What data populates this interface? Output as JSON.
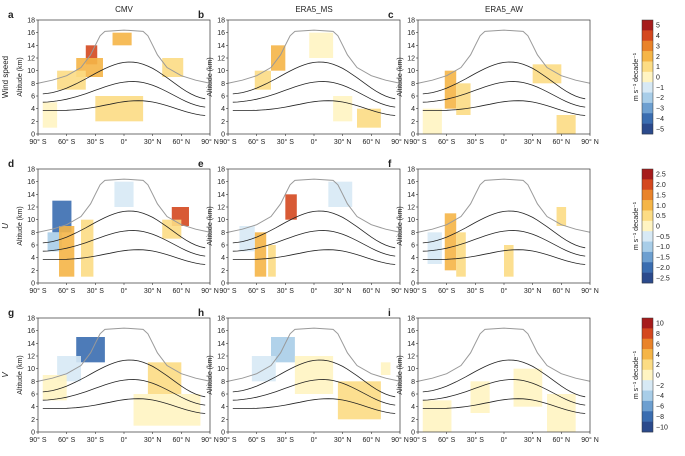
{
  "columns": [
    "CMV",
    "ERA5_MS",
    "ERA5_AW"
  ],
  "rows": [
    {
      "label": "Wind speed",
      "italic": false,
      "panels": [
        "a",
        "b",
        "c"
      ]
    },
    {
      "label": "U",
      "italic": true,
      "panels": [
        "d",
        "e",
        "f"
      ]
    },
    {
      "label": "V",
      "italic": true,
      "panels": [
        "g",
        "h",
        "i"
      ]
    }
  ],
  "axis": {
    "ylabel": "Altitude (km)",
    "yticks": [
      "0",
      "2",
      "4",
      "6",
      "8",
      "10",
      "12",
      "14",
      "16",
      "18"
    ],
    "xticks": [
      "90° S",
      "60° S",
      "30° S",
      "0°",
      "30° N",
      "60° N",
      "90° N"
    ]
  },
  "colorbars": [
    {
      "ticks": [
        "5",
        "4",
        "3",
        "2",
        "1",
        "0",
        "−1",
        "−2",
        "−3",
        "−4",
        "−5"
      ],
      "label": "m s⁻¹ decade⁻¹"
    },
    {
      "ticks": [
        "2.5",
        "2.0",
        "1.5",
        "1.0",
        "0.5",
        "0",
        "−0.5",
        "−1.0",
        "−1.5",
        "−2.0",
        "−2.5"
      ],
      "label": "m s⁻¹ decade⁻¹"
    },
    {
      "ticks": [
        "10",
        "8",
        "6",
        "4",
        "2",
        "0",
        "−2",
        "−4",
        "−6",
        "−8",
        "−10"
      ],
      "label": "m s⁻¹ decade⁻¹"
    }
  ],
  "colors": [
    "#2b4a8c",
    "#3a6db0",
    "#6d9fd0",
    "#a8cde8",
    "#d7e9f5",
    "#fff4c2",
    "#fcdc84",
    "#f5b547",
    "#e9832a",
    "#d4481f",
    "#a61c1c"
  ],
  "chart_data": {
    "type": "heatmap",
    "title": "",
    "xlabel": "",
    "ylabel": "Altitude (km)",
    "xlim": [
      -90,
      90
    ],
    "ylim": [
      0,
      18
    ],
    "tropopause_km": [
      [
        -90,
        8.0
      ],
      [
        -75,
        8.5
      ],
      [
        -60,
        9.2
      ],
      [
        -45,
        10.5
      ],
      [
        -35,
        12.5
      ],
      [
        -30,
        14.0
      ],
      [
        -25,
        15.5
      ],
      [
        -20,
        16.2
      ],
      [
        0,
        16.4
      ],
      [
        20,
        16.2
      ],
      [
        25,
        15.5
      ],
      [
        30,
        14.0
      ],
      [
        35,
        12.5
      ],
      [
        45,
        10.5
      ],
      [
        60,
        9.2
      ],
      [
        75,
        8.5
      ],
      [
        90,
        8.0
      ]
    ],
    "panels": [
      {
        "id": "a",
        "quantity": "Wind speed",
        "dataset": "CMV",
        "colorbar": 0,
        "patches": [
          {
            "lat": [
              -40,
              -28
            ],
            "alt": [
              11,
              14
            ],
            "value": 3.5
          },
          {
            "lat": [
              -50,
              -22
            ],
            "alt": [
              9,
              12
            ],
            "value": 1.5
          },
          {
            "lat": [
              -70,
              -40
            ],
            "alt": [
              7,
              10
            ],
            "value": 0.5
          },
          {
            "lat": [
              -12,
              8
            ],
            "alt": [
              14,
              16
            ],
            "value": 1.5
          },
          {
            "lat": [
              -30,
              20
            ],
            "alt": [
              2,
              6
            ],
            "value": 0.5
          },
          {
            "lat": [
              40,
              62
            ],
            "alt": [
              9,
              12
            ],
            "value": 0.5
          },
          {
            "lat": [
              -85,
              -70
            ],
            "alt": [
              1,
              5
            ],
            "value": -0.5
          }
        ]
      },
      {
        "id": "b",
        "quantity": "Wind speed",
        "dataset": "ERA5_MS",
        "colorbar": 0,
        "patches": [
          {
            "lat": [
              -45,
              -30
            ],
            "alt": [
              10,
              14
            ],
            "value": 1.5
          },
          {
            "lat": [
              -62,
              -45
            ],
            "alt": [
              7,
              10
            ],
            "value": 0.5
          },
          {
            "lat": [
              -5,
              20
            ],
            "alt": [
              12,
              16
            ],
            "value": -0.5
          },
          {
            "lat": [
              20,
              40
            ],
            "alt": [
              2,
              6
            ],
            "value": -0.5
          },
          {
            "lat": [
              45,
              70
            ],
            "alt": [
              1,
              4
            ],
            "value": 0.5
          }
        ]
      },
      {
        "id": "c",
        "quantity": "Wind speed",
        "dataset": "ERA5_AW",
        "colorbar": 0,
        "patches": [
          {
            "lat": [
              -62,
              -50
            ],
            "alt": [
              4,
              10
            ],
            "value": 1.5
          },
          {
            "lat": [
              -50,
              -35
            ],
            "alt": [
              3,
              8
            ],
            "value": 0.5
          },
          {
            "lat": [
              30,
              60
            ],
            "alt": [
              8,
              11
            ],
            "value": 0.5
          },
          {
            "lat": [
              55,
              75
            ],
            "alt": [
              0,
              3
            ],
            "value": 0.5
          },
          {
            "lat": [
              -85,
              -65
            ],
            "alt": [
              0,
              4
            ],
            "value": -0.5
          }
        ]
      },
      {
        "id": "d",
        "quantity": "U",
        "dataset": "CMV",
        "colorbar": 1,
        "patches": [
          {
            "lat": [
              -75,
              -55
            ],
            "alt": [
              8,
              13
            ],
            "value": -2.0
          },
          {
            "lat": [
              -80,
              -65
            ],
            "alt": [
              5,
              8
            ],
            "value": -1.0
          },
          {
            "lat": [
              -68,
              -52
            ],
            "alt": [
              1,
              9
            ],
            "value": 1.0
          },
          {
            "lat": [
              -45,
              -32
            ],
            "alt": [
              1,
              10
            ],
            "value": 0.5
          },
          {
            "lat": [
              50,
              68
            ],
            "alt": [
              9,
              12
            ],
            "value": 2.0
          },
          {
            "lat": [
              40,
              60
            ],
            "alt": [
              7,
              10
            ],
            "value": 0.5
          },
          {
            "lat": [
              -10,
              10
            ],
            "alt": [
              12,
              16
            ],
            "value": -0.5
          }
        ]
      },
      {
        "id": "e",
        "quantity": "U",
        "dataset": "ERA5_MS",
        "colorbar": 1,
        "patches": [
          {
            "lat": [
              -30,
              -18
            ],
            "alt": [
              10,
              14
            ],
            "value": 2.0
          },
          {
            "lat": [
              -62,
              -50
            ],
            "alt": [
              1,
              8
            ],
            "value": 1.0
          },
          {
            "lat": [
              -48,
              -40
            ],
            "alt": [
              1,
              6
            ],
            "value": 0.5
          },
          {
            "lat": [
              -78,
              -62
            ],
            "alt": [
              5,
              9
            ],
            "value": -0.5
          },
          {
            "lat": [
              15,
              40
            ],
            "alt": [
              12,
              16
            ],
            "value": -0.5
          }
        ]
      },
      {
        "id": "f",
        "quantity": "U",
        "dataset": "ERA5_AW",
        "colorbar": 1,
        "patches": [
          {
            "lat": [
              -62,
              -50
            ],
            "alt": [
              2,
              11
            ],
            "value": 1.0
          },
          {
            "lat": [
              -50,
              -40
            ],
            "alt": [
              1,
              8
            ],
            "value": 0.5
          },
          {
            "lat": [
              0,
              10
            ],
            "alt": [
              1,
              6
            ],
            "value": 0.5
          },
          {
            "lat": [
              55,
              65
            ],
            "alt": [
              9,
              12
            ],
            "value": 0.5
          },
          {
            "lat": [
              -80,
              -65
            ],
            "alt": [
              3,
              8
            ],
            "value": -0.5
          }
        ]
      },
      {
        "id": "g",
        "quantity": "V",
        "dataset": "CMV",
        "colorbar": 2,
        "patches": [
          {
            "lat": [
              -50,
              -20
            ],
            "alt": [
              11,
              15
            ],
            "value": -8.0
          },
          {
            "lat": [
              -70,
              -45
            ],
            "alt": [
              8,
              12
            ],
            "value": -3.0
          },
          {
            "lat": [
              -85,
              -60
            ],
            "alt": [
              5,
              9
            ],
            "value": -1.0
          },
          {
            "lat": [
              25,
              60
            ],
            "alt": [
              6,
              11
            ],
            "value": 1.0
          },
          {
            "lat": [
              10,
              80
            ],
            "alt": [
              1,
              6
            ],
            "value": 0.5
          }
        ]
      },
      {
        "id": "h",
        "quantity": "V",
        "dataset": "ERA5_MS",
        "colorbar": 2,
        "patches": [
          {
            "lat": [
              -45,
              -20
            ],
            "alt": [
              11,
              15
            ],
            "value": -5.0
          },
          {
            "lat": [
              -65,
              -40
            ],
            "alt": [
              8,
              12
            ],
            "value": -2.0
          },
          {
            "lat": [
              -20,
              20
            ],
            "alt": [
              6,
              12
            ],
            "value": -0.5
          },
          {
            "lat": [
              25,
              70
            ],
            "alt": [
              2,
              8
            ],
            "value": 1.0
          },
          {
            "lat": [
              70,
              80
            ],
            "alt": [
              9,
              11
            ],
            "value": -1.0
          }
        ]
      },
      {
        "id": "i",
        "quantity": "V",
        "dataset": "ERA5_AW",
        "colorbar": 2,
        "patches": [
          {
            "lat": [
              -85,
              -55
            ],
            "alt": [
              0,
              5
            ],
            "value": 0.5
          },
          {
            "lat": [
              -35,
              -15
            ],
            "alt": [
              3,
              8
            ],
            "value": -0.5
          },
          {
            "lat": [
              10,
              40
            ],
            "alt": [
              4,
              10
            ],
            "value": -0.5
          },
          {
            "lat": [
              45,
              75
            ],
            "alt": [
              0,
              6
            ],
            "value": 0.5
          }
        ]
      }
    ]
  }
}
